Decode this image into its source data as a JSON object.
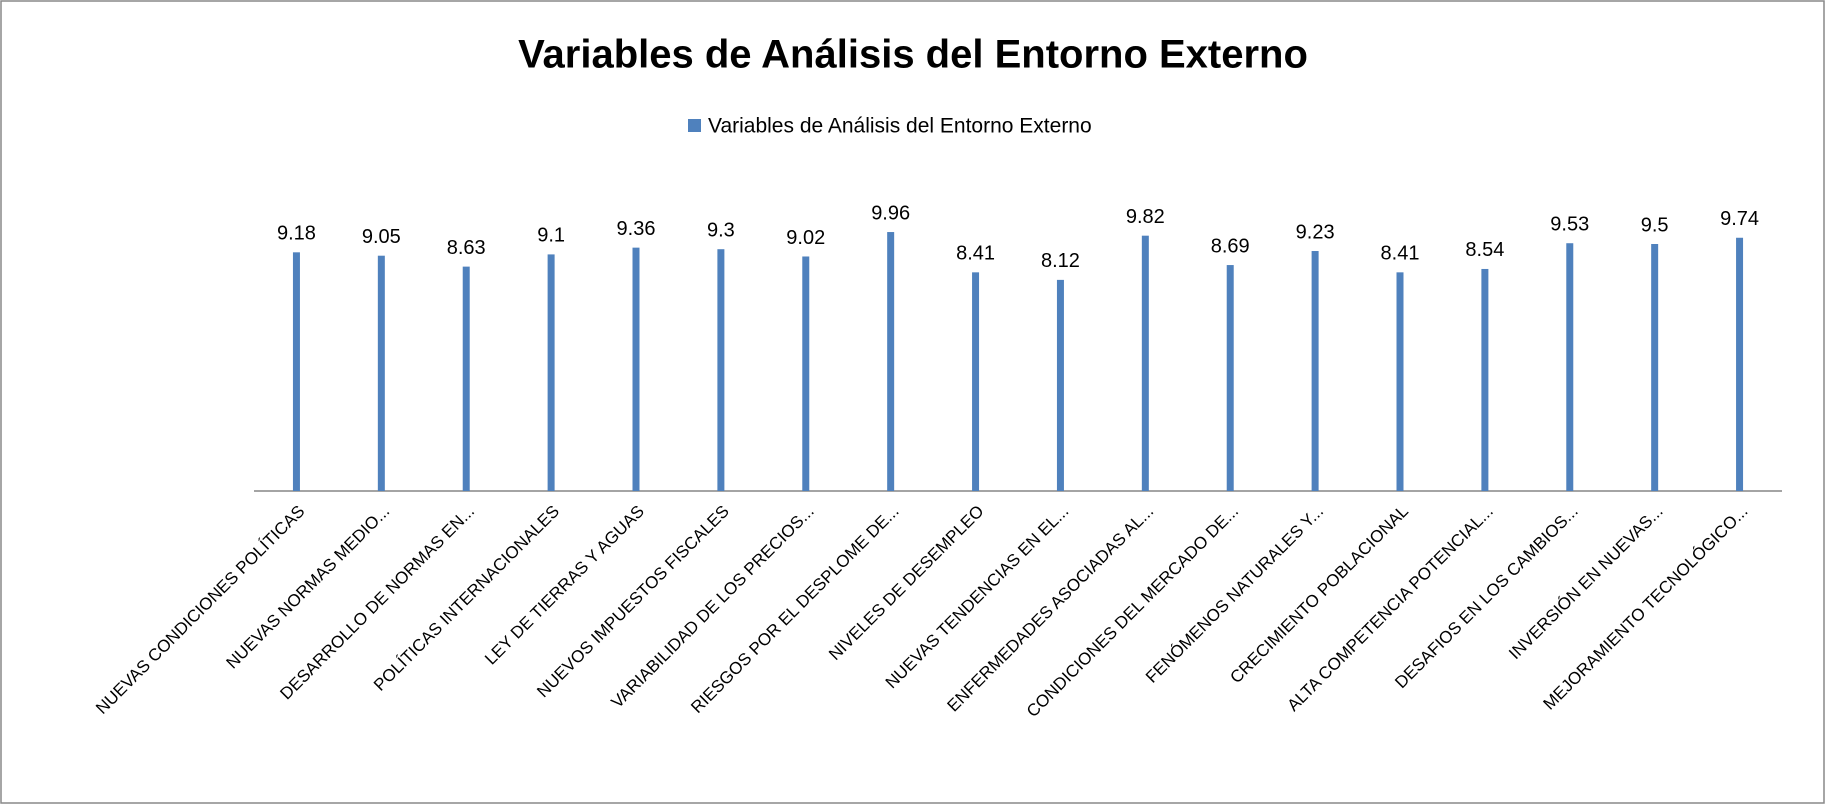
{
  "chart_data": {
    "type": "bar",
    "title": "Variables de Análisis del Entorno Externo",
    "categories": [
      "NUEVAS CONDICIONES POLÍTICAS",
      "NUEVAS NORMAS MEDIO...",
      "DESARROLLO DE NORMAS EN...",
      "POLÍTICAS INTERNACIONALES",
      "LEY DE TIERRAS Y AGUAS",
      "NUEVOS IMPUESTOS FISCALES",
      "VARIABILIDAD DE LOS PRECIOS...",
      "RIESGOS POR EL DESPLOME DE...",
      "NIVELES DE DESEMPLEO",
      "NUEVAS TENDENCIAS EN EL...",
      "ENFERMEDADES ASOCIADAS AL...",
      "CONDICIONES DEL MERCADO DE...",
      "FENÓMENOS NATURALES Y...",
      "CRECIMIENTO POBLACIONAL",
      "ALTA COMPETENCIA POTENCIAL...",
      "DESAFIOS EN LOS CAMBIOS...",
      "INVERSIÓN EN NUEVAS...",
      "MEJORAMIENTO TECNOLÓGICO..."
    ],
    "series": [
      {
        "name": "Variables de Análisis del Entorno Externo",
        "color": "#4f81bd",
        "values": [
          9.18,
          9.05,
          8.63,
          9.1,
          9.36,
          9.3,
          9.02,
          9.96,
          8.41,
          8.12,
          9.82,
          8.69,
          9.23,
          8.41,
          8.54,
          9.53,
          9.5,
          9.74
        ]
      }
    ],
    "ylim": [
      0,
      12
    ],
    "legend": "top"
  }
}
